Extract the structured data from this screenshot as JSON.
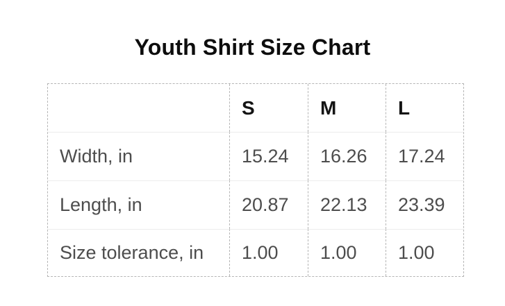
{
  "title": "Youth Shirt Size Chart",
  "table": {
    "corner_label": ""
  },
  "chart_data": {
    "type": "table",
    "title": "Youth Shirt Size Chart",
    "columns": [
      "S",
      "M",
      "L"
    ],
    "rows": [
      {
        "label": "Width, in",
        "values": [
          "15.24",
          "16.26",
          "17.24"
        ]
      },
      {
        "label": "Length, in",
        "values": [
          "20.87",
          "22.13",
          "23.39"
        ]
      },
      {
        "label": "Size tolerance, in",
        "values": [
          "1.00",
          "1.00",
          "1.00"
        ]
      }
    ],
    "layout": {
      "title_position": "top-center",
      "grid": "dashed-outer-and-column-borders, solid-row-dividers"
    }
  },
  "colors": {
    "background": "#ffffff",
    "title_text": "#0d0d0d",
    "header_text": "#141414",
    "cell_text": "#4d4d4d",
    "dashed_border": "#b5b5b5",
    "row_divider": "#ececec"
  }
}
